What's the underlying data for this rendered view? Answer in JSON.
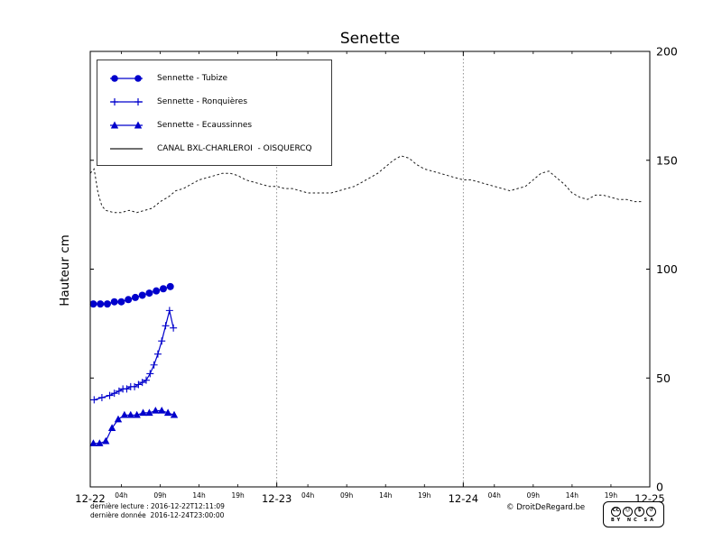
{
  "title": "Senette",
  "y_axis_label": "Hauteur cm",
  "colors": {
    "series_blue": "#0000cc",
    "canal": "#1a1a1a",
    "grid": "#777777"
  },
  "legend": {
    "items": [
      {
        "label": "Sennette - Tubize",
        "marker": "circle"
      },
      {
        "label": "Sennette - Ronquières",
        "marker": "plus"
      },
      {
        "label": "Sennette - Ecaussinnes",
        "marker": "triangle"
      },
      {
        "label": "CANAL BXL-CHARLEROI  - OISQUERCQ",
        "marker": "line"
      }
    ]
  },
  "footer": {
    "last_reading": "dernière lecture : 2016-12-22T12:11:09",
    "last_data": "dernière donnée  2016-12-24T23:00:00",
    "copyright": "© DroitDeRegard.be"
  },
  "license_badge": {
    "logo": "CC",
    "icons": [
      "☺",
      "$",
      "↺"
    ],
    "labels": "BY NC SA"
  },
  "chart_data": {
    "type": "line",
    "title": "Senette",
    "xlabel": "",
    "ylabel": "Hauteur cm",
    "x_unit": "hours since 2016-12-22 00:00",
    "xlim_hours": [
      0,
      72
    ],
    "ylim": [
      0,
      200
    ],
    "yticks": [
      0,
      50,
      100,
      150,
      200
    ],
    "grid": "vertical dotted at day boundaries",
    "legend_position": "upper left",
    "gridline_hours": [
      24,
      48
    ],
    "x_day_ticks": [
      {
        "hour": 0,
        "label": "12-22"
      },
      {
        "hour": 24,
        "label": "12-23"
      },
      {
        "hour": 48,
        "label": "12-24"
      },
      {
        "hour": 72,
        "label": "12-25"
      }
    ],
    "x_hour_ticks": [
      {
        "hour": 4,
        "label": "04h"
      },
      {
        "hour": 9,
        "label": "09h"
      },
      {
        "hour": 14,
        "label": "14h"
      },
      {
        "hour": 19,
        "label": "19h"
      },
      {
        "hour": 28,
        "label": "04h"
      },
      {
        "hour": 33,
        "label": "09h"
      },
      {
        "hour": 38,
        "label": "14h"
      },
      {
        "hour": 43,
        "label": "19h"
      },
      {
        "hour": 52,
        "label": "04h"
      },
      {
        "hour": 57,
        "label": "09h"
      },
      {
        "hour": 62,
        "label": "14h"
      },
      {
        "hour": 67,
        "label": "19h"
      }
    ],
    "series": [
      {
        "id": "tubize",
        "name": "Sennette - Tubize",
        "marker": "circle",
        "color": "#0000cc",
        "width": 1.2,
        "x": [
          0.4,
          1.3,
          2.2,
          3.1,
          4.0,
          4.9,
          5.8,
          6.7,
          7.6,
          8.5,
          9.4,
          10.3
        ],
        "y": [
          84,
          84,
          84,
          85,
          85,
          86,
          87,
          88,
          89,
          90,
          91,
          92
        ]
      },
      {
        "id": "ronquieres",
        "name": "Sennette - Ronquières",
        "marker": "plus",
        "color": "#0000cc",
        "width": 1.2,
        "x": [
          0.5,
          1.5,
          2.5,
          3.1,
          3.7,
          4.2,
          4.7,
          5.2,
          5.7,
          6.2,
          6.7,
          7.2,
          7.7,
          8.2,
          8.7,
          9.2,
          9.7,
          10.2,
          10.7
        ],
        "y": [
          40,
          41,
          42,
          43,
          44,
          45,
          45,
          46,
          46,
          47,
          48,
          49,
          52,
          56,
          61,
          67,
          74,
          81,
          73
        ]
      },
      {
        "id": "ecaussinnes",
        "name": "Sennette - Ecaussinnes",
        "marker": "triangle",
        "color": "#0000cc",
        "width": 1.2,
        "x": [
          0.4,
          1.2,
          2.0,
          2.8,
          3.6,
          4.4,
          5.2,
          6.0,
          6.8,
          7.6,
          8.4,
          9.2,
          10.0,
          10.8
        ],
        "y": [
          20,
          20,
          21,
          27,
          31,
          33,
          33,
          33,
          34,
          34,
          35,
          35,
          34,
          33
        ]
      },
      {
        "id": "canal",
        "name": "CANAL BXL-CHARLEROI  - OISQUERCQ",
        "marker": "none",
        "dash": "2.5,2.5",
        "color": "#1a1a1a",
        "width": 1,
        "x": [
          0,
          0.5,
          1,
          1.5,
          2,
          3,
          4,
          5,
          6,
          7,
          8,
          9,
          10,
          11,
          12,
          13,
          14,
          15,
          16,
          17,
          18,
          19,
          20,
          21,
          22,
          23,
          24,
          25,
          26,
          27,
          28,
          29,
          30,
          31,
          32,
          33,
          34,
          35,
          36,
          37,
          38,
          39,
          40,
          41,
          42,
          43,
          44,
          45,
          46,
          47,
          48,
          49,
          50,
          51,
          52,
          53,
          54,
          55,
          56,
          57,
          58,
          59,
          60,
          61,
          62,
          63,
          64,
          65,
          66,
          67,
          68,
          69,
          70,
          71
        ],
        "y": [
          144,
          146,
          135,
          129,
          127,
          126,
          126,
          127,
          126,
          127,
          128,
          131,
          133,
          136,
          137,
          139,
          141,
          142,
          143,
          144,
          144,
          143,
          141,
          140,
          139,
          138,
          138,
          137,
          137,
          136,
          135,
          135,
          135,
          135,
          136,
          137,
          138,
          140,
          142,
          144,
          147,
          150,
          152,
          151,
          148,
          146,
          145,
          144,
          143,
          142,
          141,
          141,
          140,
          139,
          138,
          137,
          136,
          137,
          138,
          141,
          144,
          145,
          142,
          139,
          135,
          133,
          132,
          134,
          134,
          133,
          132,
          132,
          131,
          131
        ]
      }
    ]
  }
}
